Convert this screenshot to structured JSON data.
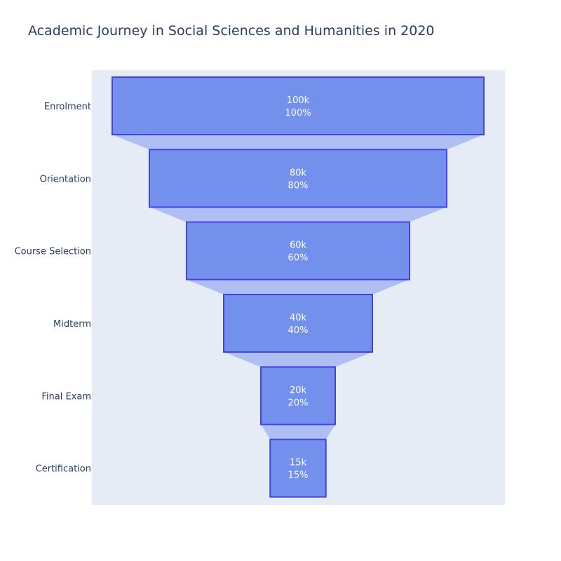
{
  "chart_data": {
    "type": "funnel",
    "title": "Academic Journey in Social Sciences and Humanities in 2020",
    "categories": [
      "Enrolment",
      "Orientation",
      "Course Selection",
      "Midterm",
      "Final Exam",
      "Certification"
    ],
    "values": [
      100000,
      80000,
      60000,
      40000,
      20000,
      15000
    ],
    "value_labels": [
      "100k",
      "80k",
      "60k",
      "40k",
      "20k",
      "15k"
    ],
    "percent_labels": [
      "100%",
      "80%",
      "60%",
      "40%",
      "20%",
      "15%"
    ],
    "colors": {
      "bar_fill": "#7390EC",
      "bar_stroke": "#4444DD",
      "connector_fill": "#AFBFF4",
      "plot_background": "#E5ECF6",
      "text": "#2A3F5F",
      "value_text": "#FFFFFF"
    },
    "legend": "none",
    "grid": false
  }
}
